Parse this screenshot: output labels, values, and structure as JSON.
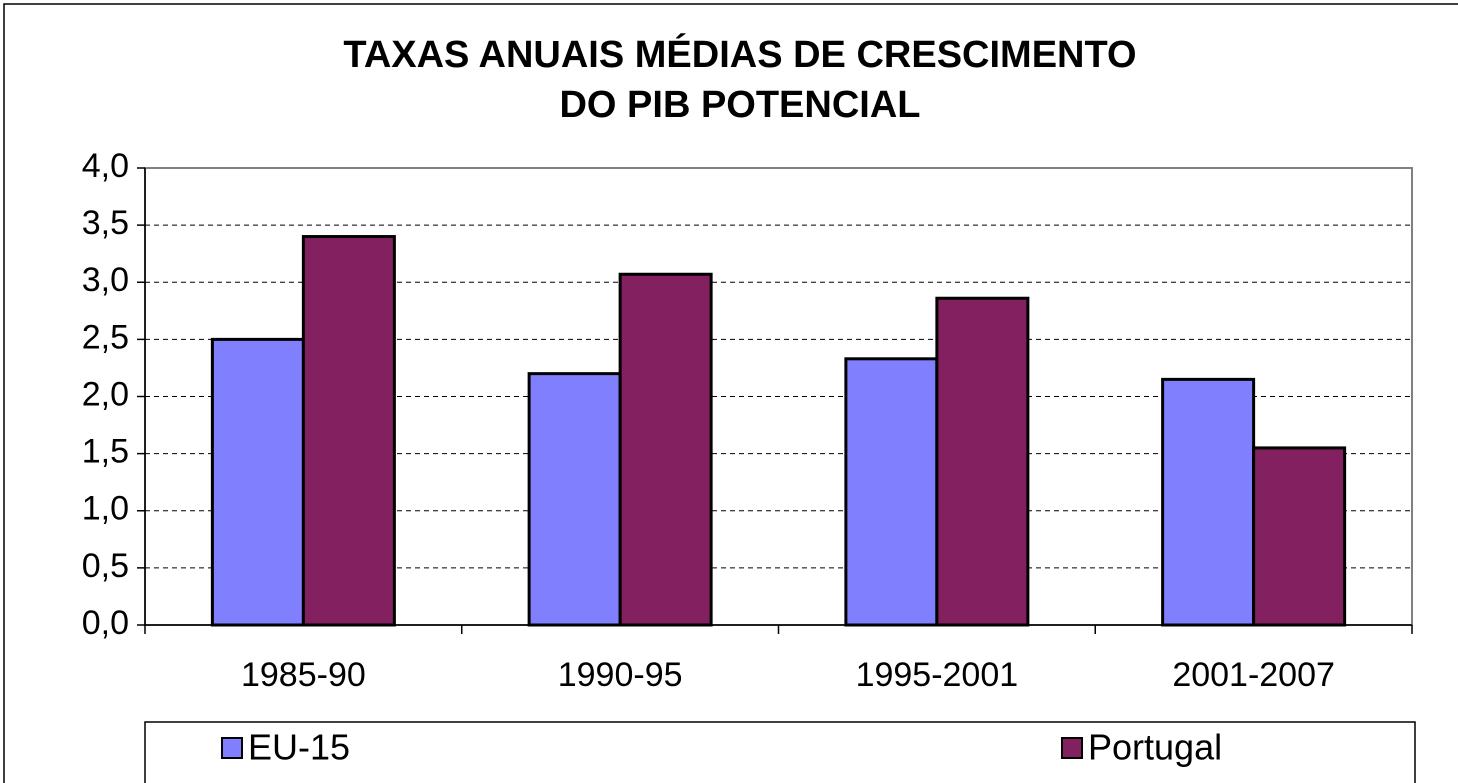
{
  "chart_data": {
    "type": "bar",
    "title": [
      "TAXAS ANUAIS MÉDIAS DE CRESCIMENTO",
      "DO PIB POTENCIAL"
    ],
    "categories": [
      "1985-90",
      "1990-95",
      "1995-2001",
      "2001-2007"
    ],
    "series": [
      {
        "name": "EU-15",
        "color": "#8080ff",
        "values": [
          2.5,
          2.2,
          2.33,
          2.15
        ]
      },
      {
        "name": "Portugal",
        "color": "#822060",
        "values": [
          3.4,
          3.07,
          2.86,
          1.55
        ]
      }
    ],
    "ylim": [
      0,
      4
    ],
    "yticks": [
      {
        "value": 0,
        "label": "0,0"
      },
      {
        "value": 0.5,
        "label": "0,5"
      },
      {
        "value": 1,
        "label": "1,0"
      },
      {
        "value": 1.5,
        "label": "1,5"
      },
      {
        "value": 2,
        "label": "2,0"
      },
      {
        "value": 2.5,
        "label": "2,5"
      },
      {
        "value": 3,
        "label": "3,0"
      },
      {
        "value": 3.5,
        "label": "3,5"
      },
      {
        "value": 4,
        "label": "4,0"
      }
    ],
    "grid": true,
    "legend": "bottom"
  }
}
